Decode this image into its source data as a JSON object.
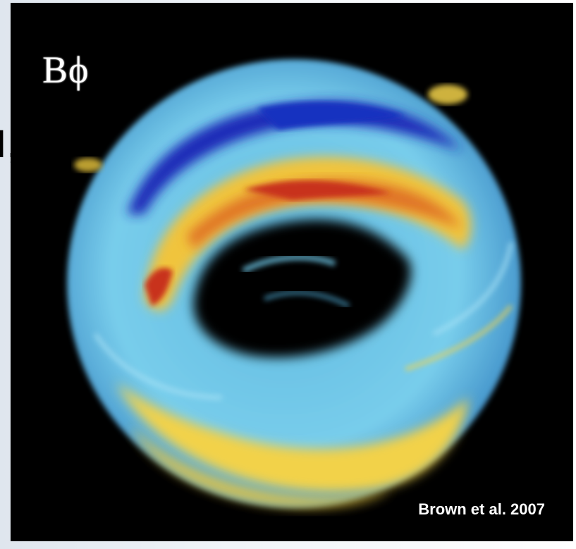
{
  "slide": {
    "background_fragment": "I,"
  },
  "figure": {
    "label": "Bϕ",
    "credit": "Brown et al. 2007"
  },
  "colors": {
    "background": "#000000",
    "dark_blue": "#1a2bb8",
    "light_blue": "#6fc8e8",
    "yellow": "#f2d24a",
    "orange": "#e8762a",
    "red": "#c8321e"
  }
}
